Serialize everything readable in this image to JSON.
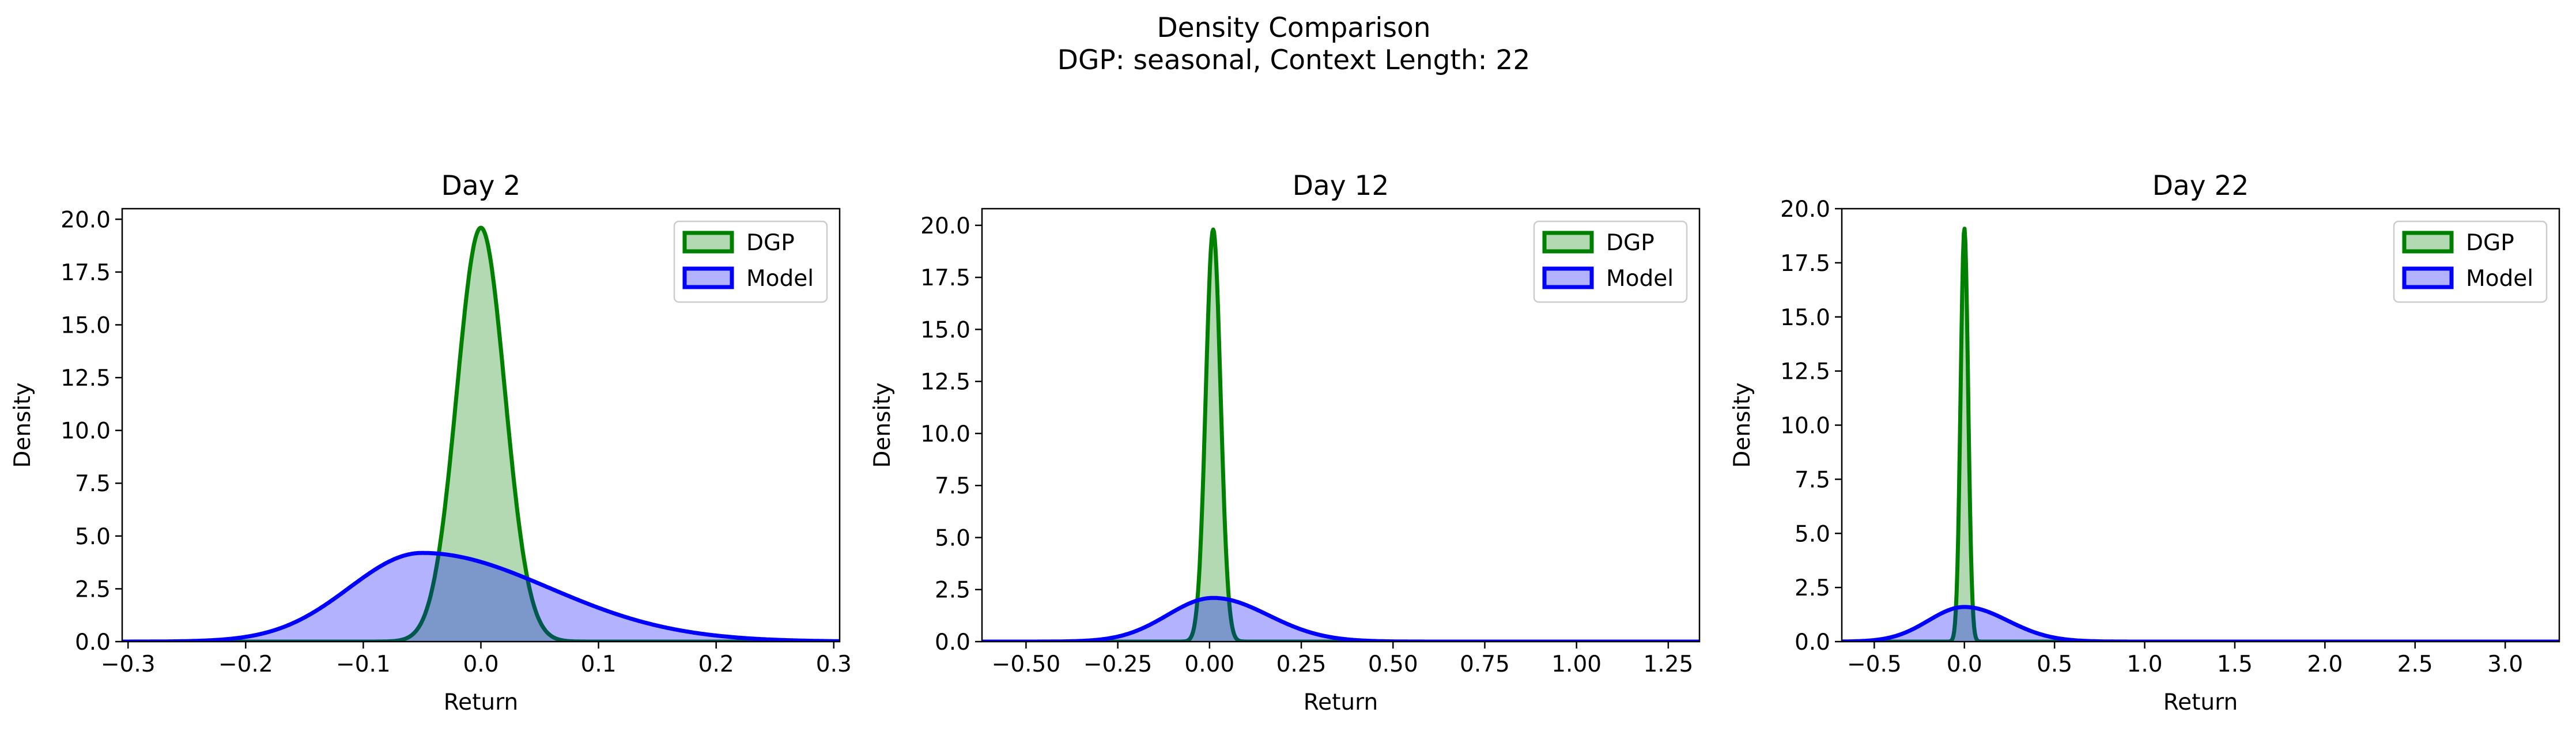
{
  "figure": {
    "title_line1": "Density Comparison",
    "title_line2": "DGP: seasonal, Context Length: 22"
  },
  "colors": {
    "dgp": "#008000",
    "dgp_fill": "rgba(0,128,0,0.30)",
    "model": "#0000ff",
    "model_fill": "rgba(0,0,255,0.30)"
  },
  "chart_data": [
    {
      "type": "area",
      "title": "Day 2",
      "xlabel": "Return",
      "ylabel": "Density",
      "xlim": [
        -0.305,
        0.305
      ],
      "ylim": [
        0,
        20.5
      ],
      "xticks": [
        -0.3,
        -0.2,
        -0.1,
        0.0,
        0.1,
        0.2,
        0.3
      ],
      "xtick_labels": [
        "−0.3",
        "−0.2",
        "−0.1",
        "0.0",
        "0.1",
        "0.2",
        "0.3"
      ],
      "yticks": [
        0,
        2.5,
        5,
        7.5,
        10,
        12.5,
        15,
        17.5,
        20
      ],
      "ytick_labels": [
        "0.0",
        "2.5",
        "5.0",
        "7.5",
        "10.0",
        "12.5",
        "15.0",
        "17.5",
        "20.0"
      ],
      "legend": "top-right",
      "series": [
        {
          "name": "DGP",
          "kind": "normal",
          "mean": 0.0,
          "peak": 19.6,
          "sd_left": 0.0204,
          "sd_right": 0.0204
        },
        {
          "name": "Model",
          "kind": "normal",
          "mean": -0.05,
          "peak": 4.2,
          "sd_left": 0.062,
          "sd_right": 0.108
        }
      ]
    },
    {
      "type": "area",
      "title": "Day 12",
      "xlabel": "Return",
      "ylabel": "Density",
      "xlim": [
        -0.62,
        1.335
      ],
      "ylim": [
        0,
        20.8
      ],
      "xticks": [
        -0.5,
        -0.25,
        0.0,
        0.25,
        0.5,
        0.75,
        1.0,
        1.25
      ],
      "xtick_labels": [
        "−0.50",
        "−0.25",
        "0.00",
        "0.25",
        "0.50",
        "0.75",
        "1.00",
        "1.25"
      ],
      "yticks": [
        0,
        2.5,
        5,
        7.5,
        10,
        12.5,
        15,
        17.5,
        20
      ],
      "ytick_labels": [
        "0.0",
        "2.5",
        "5.0",
        "7.5",
        "10.0",
        "12.5",
        "15.0",
        "17.5",
        "20.0"
      ],
      "legend": "top-right",
      "series": [
        {
          "name": "DGP",
          "kind": "normal",
          "mean": 0.01,
          "peak": 19.8,
          "sd_left": 0.0201,
          "sd_right": 0.0201
        },
        {
          "name": "Model",
          "kind": "normal",
          "mean": 0.01,
          "peak": 2.1,
          "sd_left": 0.125,
          "sd_right": 0.15
        }
      ]
    },
    {
      "type": "area",
      "title": "Day 22",
      "xlabel": "Return",
      "ylabel": "Density",
      "xlim": [
        -0.68,
        3.3
      ],
      "ylim": [
        0,
        20.0
      ],
      "xticks": [
        -0.5,
        0.0,
        0.5,
        1.0,
        1.5,
        2.0,
        2.5,
        3.0
      ],
      "xtick_labels": [
        "−0.5",
        "0.0",
        "0.5",
        "1.0",
        "1.5",
        "2.0",
        "2.5",
        "3.0"
      ],
      "yticks": [
        0,
        2.5,
        5,
        7.5,
        10,
        12.5,
        15,
        17.5,
        20
      ],
      "ytick_labels": [
        "0.0",
        "2.5",
        "5.0",
        "7.5",
        "10.0",
        "12.5",
        "15.0",
        "17.5",
        "20.0"
      ],
      "legend": "top-right",
      "series": [
        {
          "name": "DGP",
          "kind": "normal",
          "mean": 0.0,
          "peak": 19.1,
          "sd_left": 0.0209,
          "sd_right": 0.0209
        },
        {
          "name": "Model",
          "kind": "normal",
          "mean": 0.0,
          "peak": 1.6,
          "sd_left": 0.2,
          "sd_right": 0.24
        }
      ]
    }
  ]
}
